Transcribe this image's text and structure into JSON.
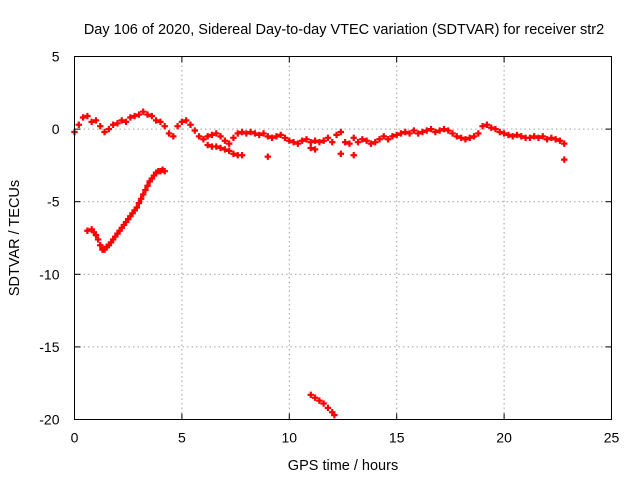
{
  "chart_data": {
    "type": "scatter",
    "title": "Day 106 of 2020, Sidereal Day-to-day VTEC variation (SDTVAR) for receiver str2",
    "xlabel": "GPS time / hours",
    "ylabel": "SDTVAR / TECUs",
    "xlim": [
      0,
      25
    ],
    "ylim": [
      -20,
      5
    ],
    "xticks": [
      0,
      5,
      10,
      15,
      20,
      25
    ],
    "yticks": [
      5,
      0,
      -5,
      -10,
      -15,
      -20
    ],
    "grid": true,
    "marker": "+",
    "color": "#ff0000",
    "series": [
      {
        "name": "main band",
        "points": [
          [
            0.0,
            -0.2
          ],
          [
            0.2,
            0.3
          ],
          [
            0.4,
            0.8
          ],
          [
            0.6,
            0.9
          ],
          [
            0.8,
            0.5
          ],
          [
            1.0,
            0.6
          ],
          [
            1.2,
            0.2
          ],
          [
            1.4,
            -0.2
          ],
          [
            1.6,
            0.0
          ],
          [
            1.8,
            0.3
          ],
          [
            2.0,
            0.4
          ],
          [
            2.2,
            0.6
          ],
          [
            2.4,
            0.5
          ],
          [
            2.6,
            0.8
          ],
          [
            2.8,
            0.9
          ],
          [
            3.0,
            1.0
          ],
          [
            3.2,
            1.2
          ],
          [
            3.4,
            1.0
          ],
          [
            3.6,
            0.9
          ],
          [
            3.8,
            0.6
          ],
          [
            4.0,
            0.5
          ],
          [
            4.2,
            0.2
          ],
          [
            4.4,
            -0.3
          ],
          [
            4.6,
            -0.5
          ],
          [
            4.8,
            0.2
          ],
          [
            5.0,
            0.5
          ],
          [
            5.2,
            0.6
          ],
          [
            5.4,
            0.3
          ],
          [
            5.6,
            -0.1
          ],
          [
            5.8,
            -0.5
          ],
          [
            6.0,
            -0.7
          ],
          [
            6.2,
            -0.5
          ],
          [
            6.4,
            -0.4
          ],
          [
            6.6,
            -0.3
          ],
          [
            6.8,
            -0.5
          ],
          [
            7.0,
            -0.8
          ],
          [
            7.2,
            -1.0
          ],
          [
            7.4,
            -0.6
          ],
          [
            7.6,
            -0.3
          ],
          [
            7.8,
            -0.2
          ],
          [
            8.0,
            -0.3
          ],
          [
            8.2,
            -0.2
          ],
          [
            8.4,
            -0.3
          ],
          [
            8.6,
            -0.4
          ],
          [
            8.8,
            -0.3
          ],
          [
            9.0,
            -0.5
          ],
          [
            9.2,
            -0.6
          ],
          [
            9.4,
            -0.5
          ],
          [
            9.6,
            -0.4
          ],
          [
            9.8,
            -0.6
          ],
          [
            10.0,
            -0.8
          ],
          [
            10.2,
            -0.9
          ],
          [
            10.4,
            -1.0
          ],
          [
            10.6,
            -0.8
          ],
          [
            10.8,
            -0.7
          ],
          [
            11.0,
            -0.9
          ],
          [
            11.2,
            -0.8
          ],
          [
            11.4,
            -0.9
          ],
          [
            11.6,
            -0.8
          ],
          [
            11.8,
            -0.6
          ],
          [
            12.0,
            -0.9
          ],
          [
            12.2,
            -0.4
          ],
          [
            12.4,
            -0.2
          ],
          [
            12.6,
            -0.9
          ],
          [
            12.8,
            -1.0
          ],
          [
            13.0,
            -0.6
          ],
          [
            13.2,
            -0.9
          ],
          [
            13.4,
            -0.7
          ],
          [
            13.6,
            -0.8
          ],
          [
            13.8,
            -1.0
          ],
          [
            14.0,
            -0.9
          ],
          [
            14.2,
            -0.7
          ],
          [
            14.4,
            -0.5
          ],
          [
            14.6,
            -0.7
          ],
          [
            14.8,
            -0.5
          ],
          [
            15.0,
            -0.4
          ],
          [
            15.2,
            -0.3
          ],
          [
            15.4,
            -0.2
          ],
          [
            15.6,
            -0.3
          ],
          [
            15.8,
            -0.1
          ],
          [
            16.0,
            -0.3
          ],
          [
            16.2,
            -0.2
          ],
          [
            16.4,
            -0.1
          ],
          [
            16.6,
            0.0
          ],
          [
            16.8,
            -0.2
          ],
          [
            17.0,
            -0.1
          ],
          [
            17.2,
            0.0
          ],
          [
            17.4,
            -0.1
          ],
          [
            17.6,
            -0.3
          ],
          [
            17.8,
            -0.5
          ],
          [
            18.0,
            -0.6
          ],
          [
            18.2,
            -0.7
          ],
          [
            18.4,
            -0.6
          ],
          [
            18.6,
            -0.5
          ],
          [
            18.8,
            -0.3
          ],
          [
            19.0,
            0.2
          ],
          [
            19.2,
            0.3
          ],
          [
            19.4,
            0.1
          ],
          [
            19.6,
            0.0
          ],
          [
            19.8,
            -0.2
          ],
          [
            20.0,
            -0.3
          ],
          [
            20.2,
            -0.4
          ],
          [
            20.4,
            -0.5
          ],
          [
            20.6,
            -0.4
          ],
          [
            20.8,
            -0.5
          ],
          [
            21.0,
            -0.6
          ],
          [
            21.2,
            -0.6
          ],
          [
            21.4,
            -0.5
          ],
          [
            21.6,
            -0.6
          ],
          [
            21.8,
            -0.5
          ],
          [
            22.0,
            -0.7
          ],
          [
            22.2,
            -0.6
          ],
          [
            22.4,
            -0.7
          ],
          [
            22.6,
            -0.8
          ],
          [
            22.8,
            -1.0
          ]
        ]
      },
      {
        "name": "lower dips",
        "points": [
          [
            6.2,
            -1.1
          ],
          [
            6.4,
            -1.2
          ],
          [
            6.6,
            -1.2
          ],
          [
            6.8,
            -1.3
          ],
          [
            7.0,
            -1.4
          ],
          [
            7.2,
            -1.5
          ],
          [
            7.4,
            -1.7
          ],
          [
            7.6,
            -1.8
          ],
          [
            7.8,
            -1.8
          ],
          [
            9.0,
            -1.9
          ],
          [
            11.0,
            -1.3
          ],
          [
            11.2,
            -1.4
          ],
          [
            12.4,
            -1.7
          ],
          [
            13.0,
            -1.8
          ],
          [
            22.8,
            -2.1
          ]
        ]
      },
      {
        "name": "rising arc",
        "points": [
          [
            0.6,
            -7.0
          ],
          [
            0.8,
            -6.9
          ],
          [
            0.9,
            -7.1
          ],
          [
            1.0,
            -7.3
          ],
          [
            1.1,
            -7.6
          ],
          [
            1.2,
            -8.0
          ],
          [
            1.3,
            -8.3
          ],
          [
            1.4,
            -8.3
          ],
          [
            1.5,
            -8.1
          ],
          [
            1.6,
            -8.0
          ],
          [
            1.7,
            -7.8
          ],
          [
            1.8,
            -7.6
          ],
          [
            1.9,
            -7.4
          ],
          [
            2.0,
            -7.2
          ],
          [
            2.1,
            -7.0
          ],
          [
            2.2,
            -6.8
          ],
          [
            2.3,
            -6.6
          ],
          [
            2.4,
            -6.4
          ],
          [
            2.5,
            -6.2
          ],
          [
            2.6,
            -6.0
          ],
          [
            2.7,
            -5.8
          ],
          [
            2.8,
            -5.6
          ],
          [
            2.9,
            -5.4
          ],
          [
            3.0,
            -5.1
          ],
          [
            3.1,
            -4.8
          ],
          [
            3.2,
            -4.5
          ],
          [
            3.3,
            -4.2
          ],
          [
            3.4,
            -3.9
          ],
          [
            3.5,
            -3.6
          ],
          [
            3.6,
            -3.4
          ],
          [
            3.7,
            -3.2
          ],
          [
            3.8,
            -3.0
          ],
          [
            3.9,
            -2.9
          ],
          [
            4.0,
            -2.9
          ],
          [
            4.1,
            -2.8
          ],
          [
            4.2,
            -2.9
          ]
        ]
      },
      {
        "name": "late segment",
        "points": [
          [
            11.0,
            -18.3
          ],
          [
            11.2,
            -18.5
          ],
          [
            11.4,
            -18.7
          ],
          [
            11.6,
            -18.9
          ],
          [
            11.8,
            -19.2
          ],
          [
            12.0,
            -19.5
          ],
          [
            12.1,
            -19.7
          ]
        ]
      }
    ]
  }
}
